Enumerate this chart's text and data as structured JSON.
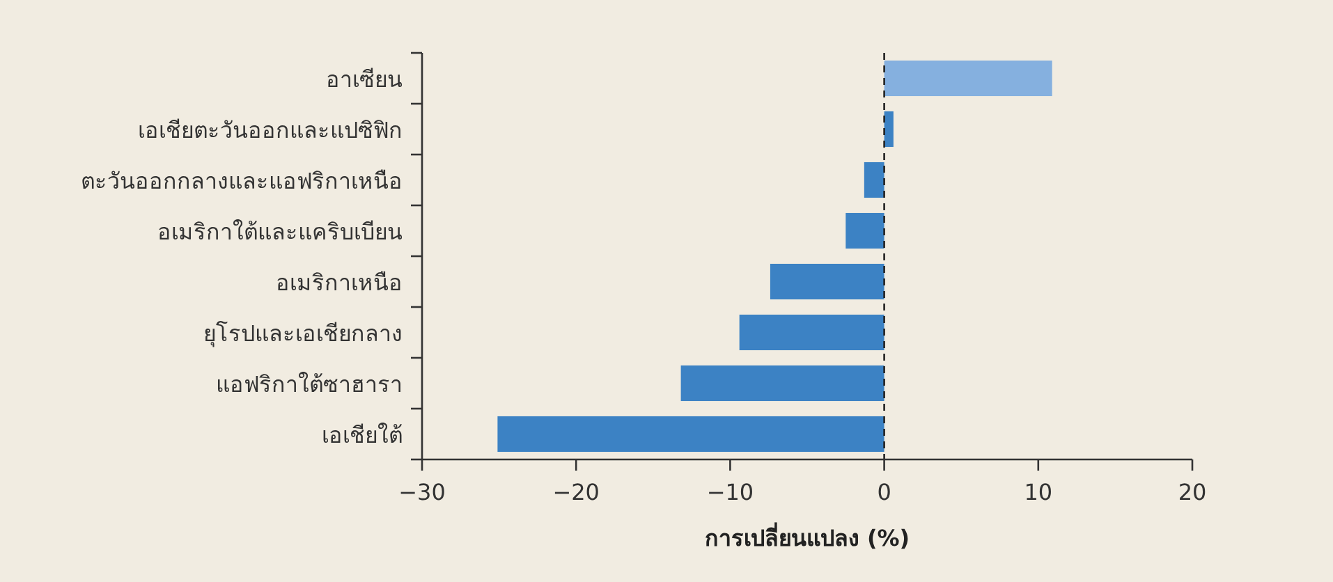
{
  "chart_data": {
    "type": "bar",
    "orientation": "horizontal",
    "xlabel": "การเปลี่ยนแปลง (%)",
    "categories": [
      "อาเซียน",
      "เอเชียตะวันออกและแปซิฟิก",
      "ตะวันออกกลางและแอฟริกาเหนือ",
      "อเมริกาใต้และแคริบเบียน",
      "อเมริกาเหนือ",
      "ยุโรปและเอเชียกลาง",
      "แอฟริกาใต้ซาฮารา",
      "เอเชียใต้"
    ],
    "values": [
      10.9,
      0.6,
      -1.3,
      -2.5,
      -7.4,
      -9.4,
      -13.2,
      -25.1
    ],
    "colors": [
      "#85b0df",
      "#3c82c4",
      "#3c82c4",
      "#3c82c4",
      "#3c82c4",
      "#3c82c4",
      "#3c82c4",
      "#3c82c4"
    ],
    "xlim": [
      -30,
      20
    ],
    "xticks": [
      {
        "value": -30,
        "label": "−30"
      },
      {
        "value": -20,
        "label": "−20"
      },
      {
        "value": -10,
        "label": "−10"
      },
      0,
      10,
      20
    ],
    "ref_lines": [
      {
        "axis": "x",
        "value": 0,
        "line_style": "dashed",
        "color": "#222222"
      }
    ]
  }
}
